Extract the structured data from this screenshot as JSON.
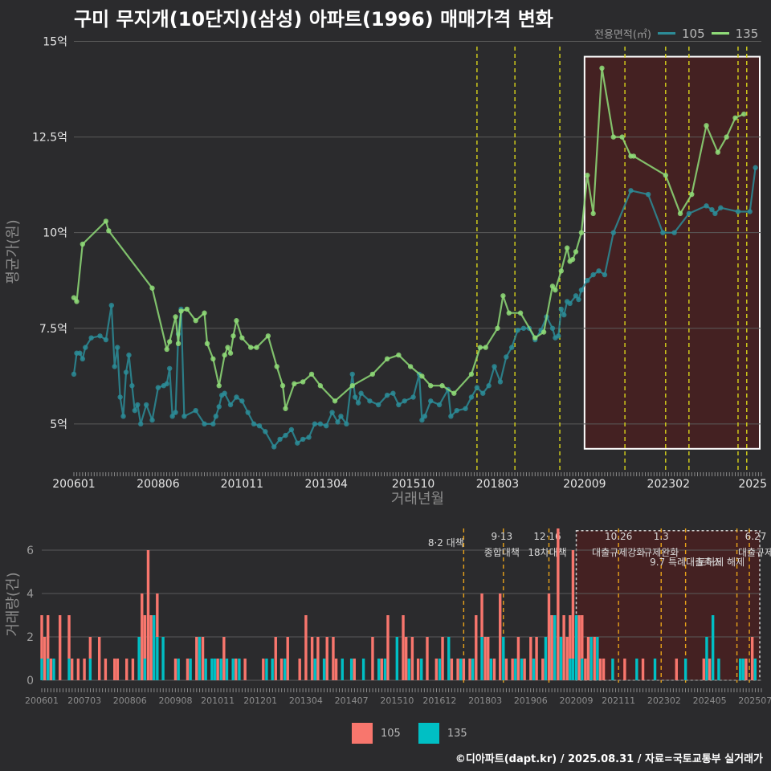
{
  "title": "구미 무지개(10단지)(삼성) 아파트(1996) 매매가격 변화",
  "legend": {
    "title": "전용면적(㎡)",
    "items": [
      {
        "name": "105",
        "color": "#2c8c98"
      },
      {
        "name": "135",
        "color": "#8fdc78"
      }
    ]
  },
  "footer": "©디아파트(dapt.kr) / 2025.08.31 / 자료=국토교통부 실거래가",
  "colors": {
    "s105_line": "#2c8c98",
    "s135_line": "#8fdc78",
    "bar105": "#f8766d",
    "bar135": "#00bfc4",
    "vline": "#d8d41a",
    "vline_bottom": "#e8a21a",
    "shade": "#5a1a1a"
  },
  "chart_data": [
    {
      "type": "line",
      "ylabel": "평균가(원)",
      "xlabel": "거래년월",
      "y_unit_label": "억",
      "ylim": [
        3.8,
        15.2
      ],
      "yticks": [
        {
          "v": 5,
          "label": "5억"
        },
        {
          "v": 7.5,
          "label": "7.5억"
        },
        {
          "v": 10,
          "label": "10억"
        },
        {
          "v": 12.5,
          "label": "12.5억"
        },
        {
          "v": 15,
          "label": "15억"
        }
      ],
      "xlim": [
        2006.0,
        2025.75
      ],
      "xticks": [
        {
          "v": 2006.0,
          "label": "200601"
        },
        {
          "v": 2008.42,
          "label": "200806"
        },
        {
          "v": 2010.83,
          "label": "201011"
        },
        {
          "v": 2013.25,
          "label": "201304"
        },
        {
          "v": 2015.75,
          "label": "201510"
        },
        {
          "v": 2018.17,
          "label": "201803"
        },
        {
          "v": 2020.67,
          "label": "202009"
        },
        {
          "v": 2023.08,
          "label": "202302"
        },
        {
          "v": 2025.5,
          "label": "2025"
        }
      ],
      "vlines": [
        2017.58,
        2018.67,
        2019.96,
        2021.83,
        2023.0,
        2023.67,
        2025.08,
        2025.33
      ],
      "highlight": [
        2020.67,
        2025.75
      ],
      "series": [
        {
          "name": "135",
          "x": [
            2006.0,
            2006.08,
            2006.25,
            2006.92,
            2007.0,
            2008.25,
            2008.67,
            2008.75,
            2008.92,
            2009.0,
            2009.08,
            2009.25,
            2009.5,
            2009.75,
            2009.83,
            2010.0,
            2010.17,
            2010.33,
            2010.42,
            2010.5,
            2010.58,
            2010.67,
            2010.83,
            2011.08,
            2011.25,
            2011.58,
            2011.83,
            2012.0,
            2012.08,
            2012.33,
            2012.58,
            2012.83,
            2013.08,
            2013.5,
            2014.0,
            2014.58,
            2015.0,
            2015.33,
            2015.67,
            2016.0,
            2016.25,
            2016.58,
            2016.92,
            2017.42,
            2017.67,
            2017.83,
            2018.17,
            2018.33,
            2018.5,
            2018.83,
            2019.25,
            2019.5,
            2019.75,
            2019.83,
            2020.0,
            2020.17,
            2020.25,
            2020.33,
            2020.42,
            2020.58,
            2020.75,
            2020.92,
            2021.17,
            2021.5,
            2021.75,
            2022.0,
            2022.08,
            2023.0,
            2023.42,
            2023.75,
            2024.17,
            2024.5,
            2024.75,
            2025.0,
            2025.25
          ],
          "y": [
            8.3,
            8.2,
            9.7,
            10.3,
            10.05,
            8.55,
            6.95,
            7.15,
            7.8,
            7.1,
            7.95,
            8.0,
            7.7,
            7.9,
            7.1,
            6.7,
            6.0,
            6.8,
            7.0,
            6.85,
            7.3,
            7.7,
            7.25,
            7.0,
            7.0,
            7.3,
            6.5,
            6.0,
            5.4,
            6.05,
            6.1,
            6.3,
            6.0,
            5.6,
            6.0,
            6.3,
            6.7,
            6.8,
            6.5,
            6.25,
            6.0,
            6.0,
            5.8,
            6.3,
            7.0,
            7.0,
            7.5,
            8.35,
            7.9,
            7.9,
            7.25,
            7.4,
            8.6,
            8.5,
            9.0,
            9.6,
            9.25,
            9.3,
            9.5,
            10.0,
            11.5,
            10.5,
            14.3,
            12.5,
            12.5,
            12.0,
            12.0,
            11.5,
            10.5,
            11.0,
            12.8,
            12.1,
            12.5,
            13.0,
            13.1
          ]
        },
        {
          "name": "105",
          "x": [
            2006.0,
            2006.08,
            2006.17,
            2006.25,
            2006.33,
            2006.5,
            2006.75,
            2006.92,
            2007.08,
            2007.17,
            2007.25,
            2007.33,
            2007.42,
            2007.5,
            2007.58,
            2007.67,
            2007.75,
            2007.83,
            2007.92,
            2008.08,
            2008.25,
            2008.42,
            2008.58,
            2008.67,
            2008.75,
            2008.83,
            2008.92,
            2009.0,
            2009.08,
            2009.17,
            2009.5,
            2009.75,
            2010.0,
            2010.08,
            2010.17,
            2010.25,
            2010.33,
            2010.5,
            2010.67,
            2010.83,
            2011.0,
            2011.17,
            2011.33,
            2011.5,
            2011.75,
            2011.92,
            2012.08,
            2012.25,
            2012.42,
            2012.58,
            2012.75,
            2012.92,
            2013.08,
            2013.25,
            2013.42,
            2013.58,
            2013.67,
            2013.83,
            2014.0,
            2014.08,
            2014.17,
            2014.25,
            2014.5,
            2014.75,
            2015.0,
            2015.17,
            2015.33,
            2015.5,
            2015.75,
            2015.92,
            2016.0,
            2016.08,
            2016.25,
            2016.5,
            2016.75,
            2016.83,
            2017.0,
            2017.25,
            2017.42,
            2017.58,
            2017.75,
            2017.92,
            2018.08,
            2018.25,
            2018.42,
            2018.58,
            2018.75,
            2018.92,
            2019.08,
            2019.25,
            2019.42,
            2019.58,
            2019.75,
            2019.83,
            2019.92,
            2020.0,
            2020.08,
            2020.17,
            2020.25,
            2020.42,
            2020.5,
            2020.58,
            2020.75,
            2020.92,
            2021.08,
            2021.25,
            2021.5,
            2022.0,
            2022.5,
            2022.92,
            2023.25,
            2023.67,
            2024.17,
            2024.33,
            2024.42,
            2024.58,
            2025.08,
            2025.42,
            2025.58
          ],
          "y": [
            6.3,
            6.85,
            6.85,
            6.7,
            7.0,
            7.25,
            7.3,
            7.2,
            8.1,
            6.5,
            7.0,
            5.7,
            5.2,
            6.35,
            6.8,
            6.0,
            5.35,
            5.5,
            5.0,
            5.5,
            5.1,
            5.95,
            6.0,
            6.05,
            6.45,
            5.2,
            5.3,
            7.35,
            8.0,
            5.2,
            5.35,
            5.0,
            5.0,
            5.2,
            5.45,
            5.75,
            5.8,
            5.5,
            5.7,
            5.6,
            5.3,
            5.0,
            4.95,
            4.8,
            4.4,
            4.6,
            4.7,
            4.85,
            4.5,
            4.6,
            4.65,
            5.0,
            5.0,
            4.95,
            5.3,
            5.05,
            5.2,
            5.0,
            6.3,
            5.7,
            5.55,
            5.8,
            5.6,
            5.5,
            5.75,
            5.8,
            5.5,
            5.6,
            5.7,
            6.3,
            5.1,
            5.2,
            5.6,
            5.5,
            5.9,
            5.2,
            5.35,
            5.4,
            5.7,
            5.95,
            5.8,
            6.0,
            6.5,
            6.1,
            6.75,
            7.0,
            7.45,
            7.5,
            7.5,
            7.2,
            7.45,
            7.8,
            7.5,
            7.25,
            7.3,
            8.0,
            7.85,
            8.2,
            8.15,
            8.35,
            8.25,
            8.5,
            8.75,
            8.9,
            9.0,
            8.9,
            10.0,
            11.1,
            11.0,
            10.0,
            10.0,
            10.5,
            10.7,
            10.6,
            10.5,
            10.65,
            10.55,
            10.55,
            11.7
          ]
        }
      ]
    },
    {
      "type": "bar",
      "ylabel": "거래량(건)",
      "ylim": [
        0,
        7
      ],
      "yticks": [
        {
          "v": 0,
          "label": "0"
        },
        {
          "v": 2,
          "label": "2"
        },
        {
          "v": 4,
          "label": "4"
        },
        {
          "v": 6,
          "label": "6"
        }
      ],
      "xlim": [
        2006.0,
        2025.75
      ],
      "xticks": [
        {
          "v": 2006.0,
          "label": "200601"
        },
        {
          "v": 2007.17,
          "label": "200703"
        },
        {
          "v": 2008.42,
          "label": "200806"
        },
        {
          "v": 2009.67,
          "label": "200908"
        },
        {
          "v": 2010.83,
          "label": "201011"
        },
        {
          "v": 2012.0,
          "label": "201201"
        },
        {
          "v": 2013.25,
          "label": "201304"
        },
        {
          "v": 2014.5,
          "label": "201407"
        },
        {
          "v": 2015.75,
          "label": "201510"
        },
        {
          "v": 2016.92,
          "label": "201612"
        },
        {
          "v": 2018.17,
          "label": "201803"
        },
        {
          "v": 2019.42,
          "label": "201906"
        },
        {
          "v": 2020.67,
          "label": "202009"
        },
        {
          "v": 2021.83,
          "label": "202111"
        },
        {
          "v": 2023.08,
          "label": "202302"
        },
        {
          "v": 2024.33,
          "label": "202405"
        },
        {
          "v": 2025.58,
          "label": "202507"
        }
      ],
      "highlight": [
        2020.67,
        2025.75
      ],
      "events": [
        {
          "x": 2017.58,
          "date": "8·2",
          "name": "대책"
        },
        {
          "x": 2018.67,
          "date": "9·13",
          "name": "종합대책"
        },
        {
          "x": 2019.92,
          "date": "12·16",
          "name": "18차대책"
        },
        {
          "x": 2021.83,
          "date": "10.26",
          "name": "대출규제강화"
        },
        {
          "x": 2023.0,
          "date": "1.3",
          "name": "규제완화"
        },
        {
          "x": 2023.67,
          "date": "",
          "name": "9.7 특례대출축소"
        },
        {
          "x": 2025.08,
          "date": "",
          "name": "토허제 해제"
        },
        {
          "x": 2025.42,
          "date": "6.27",
          "name": "대출규제"
        }
      ],
      "series": [
        {
          "name": "105",
          "x": [
            2006.0,
            2006.08,
            2006.17,
            2006.25,
            2006.5,
            2006.75,
            2006.83,
            2007.0,
            2007.17,
            2007.33,
            2007.58,
            2007.75,
            2008.0,
            2008.08,
            2008.33,
            2008.5,
            2008.75,
            2008.83,
            2008.92,
            2009.0,
            2009.17,
            2009.67,
            2010.0,
            2010.25,
            2010.42,
            2010.83,
            2011.0,
            2011.33,
            2011.58,
            2012.08,
            2012.42,
            2012.58,
            2012.75,
            2013.08,
            2013.25,
            2013.42,
            2013.58,
            2013.83,
            2014.0,
            2014.08,
            2014.58,
            2015.08,
            2015.33,
            2015.5,
            2015.92,
            2016.0,
            2016.17,
            2016.33,
            2016.58,
            2016.83,
            2017.0,
            2017.25,
            2017.42,
            2017.58,
            2017.75,
            2017.92,
            2018.08,
            2018.17,
            2018.25,
            2018.42,
            2018.58,
            2018.75,
            2018.92,
            2019.08,
            2019.25,
            2019.42,
            2019.58,
            2019.75,
            2019.92,
            2020.0,
            2020.17,
            2020.33,
            2020.42,
            2020.5,
            2020.58,
            2020.75,
            2020.83,
            2020.92,
            2021.0,
            2021.17,
            2021.33,
            2021.42,
            2022.0,
            2022.5,
            2023.42,
            2024.17,
            2024.33,
            2025.33,
            2025.5
          ],
          "y": [
            2,
            2,
            2,
            1,
            3,
            2,
            1,
            1,
            1,
            1,
            2,
            1,
            1,
            1,
            1,
            1,
            4,
            2,
            6,
            3,
            2,
            1,
            1,
            2,
            2,
            1,
            2,
            1,
            1,
            1,
            2,
            1,
            2,
            1,
            3,
            2,
            2,
            2,
            2,
            1,
            1,
            2,
            1,
            3,
            3,
            2,
            2,
            1,
            2,
            1,
            2,
            1,
            1,
            1,
            1,
            3,
            2,
            2,
            2,
            1,
            4,
            1,
            1,
            2,
            1,
            2,
            2,
            1,
            4,
            3,
            7,
            3,
            2,
            2,
            5,
            3,
            2,
            1,
            2,
            2,
            1,
            1,
            1,
            1,
            1,
            1,
            1,
            1,
            2
          ]
        },
        {
          "name": "135",
          "x": [
            2006.0,
            2006.17,
            2006.33,
            2006.75,
            2007.33,
            2008.67,
            2008.83,
            2009.08,
            2009.17,
            2009.33,
            2009.75,
            2010.08,
            2010.33,
            2010.5,
            2010.67,
            2010.75,
            2010.92,
            2011.08,
            2011.25,
            2011.42,
            2012.17,
            2012.33,
            2012.67,
            2013.5,
            2013.75,
            2014.25,
            2014.5,
            2014.83,
            2015.25,
            2015.42,
            2015.75,
            2016.08,
            2016.42,
            2016.92,
            2017.17,
            2017.5,
            2017.83,
            2018.08,
            2018.33,
            2018.67,
            2019.0,
            2019.17,
            2019.5,
            2019.83,
            2019.96,
            2020.08,
            2020.25,
            2020.5,
            2020.58,
            2020.67,
            2020.83,
            2021.08,
            2021.25,
            2021.67,
            2022.33,
            2022.83,
            2023.67,
            2024.25,
            2024.42,
            2024.58,
            2025.17,
            2025.25,
            2025.58
          ],
          "y": [
            1,
            1,
            1,
            1,
            1,
            2,
            1,
            3,
            2,
            2,
            1,
            1,
            2,
            1,
            1,
            1,
            1,
            1,
            1,
            1,
            1,
            1,
            1,
            1,
            1,
            1,
            1,
            1,
            1,
            1,
            2,
            1,
            1,
            1,
            2,
            1,
            1,
            2,
            1,
            2,
            1,
            1,
            1,
            2,
            3,
            3,
            2,
            1,
            1,
            3,
            1,
            2,
            2,
            1,
            1,
            1,
            1,
            2,
            3,
            1,
            1,
            1,
            1
          ]
        }
      ]
    }
  ]
}
